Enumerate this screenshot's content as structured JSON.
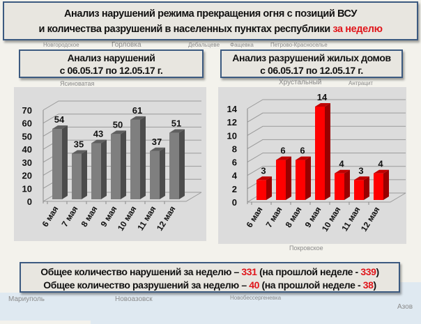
{
  "title": {
    "line1": "Анализ нарушений режима прекращения огня с позиций ВСУ",
    "line2": "и количества разрушений в населенных пунктах республики",
    "line2_highlight": "за неделю"
  },
  "left_header": {
    "line1": "Анализ нарушений",
    "line2": "с 06.05.17 по 12.05.17 г."
  },
  "right_header": {
    "line1": "Анализ разрушений жилых домов",
    "line2": "с 06.05.17 по 12.05.17 г."
  },
  "summary": {
    "line1_prefix": "Общее количество нарушений за неделю – ",
    "line1_value": "331",
    "line1_mid": " (на прошлой неделе - ",
    "line1_prev": "339",
    "line1_suffix": ")",
    "line2_prefix": "Общее количество разрушений за неделю – ",
    "line2_value": "40",
    "line2_mid": " (на прошлой неделе - ",
    "line2_prev": "38",
    "line2_suffix": ")"
  },
  "map_labels": [
    "Горловка",
    "Новгородское",
    "Дебальцеве",
    "Фащевка",
    "Петрово-Красноселье",
    "Ясиноватая",
    "Хрустальный",
    "Антрацит",
    "Покровское",
    "Мариуполь",
    "Новоазовск",
    "Азов",
    "Новобессергеневка"
  ],
  "colors": {
    "accent_red": "#e0161b",
    "border": "#3c5a80",
    "gray_bar": "#7f7f7f",
    "red_bar": "#ff0000"
  },
  "chart_data": [
    {
      "type": "bar",
      "style": "3d-column",
      "categories": [
        "6 мая",
        "7 мая",
        "8 мая",
        "9 мая",
        "10 мая",
        "11 мая",
        "12 мая"
      ],
      "values": [
        54,
        35,
        43,
        50,
        61,
        37,
        51
      ],
      "ylim": [
        0,
        70
      ],
      "yticks": [
        0,
        10,
        20,
        30,
        40,
        50,
        60,
        70
      ],
      "grid": true,
      "color": "#7f7f7f"
    },
    {
      "type": "bar",
      "style": "3d-column",
      "categories": [
        "6 мая",
        "7 мая",
        "8 мая",
        "9 мая",
        "10 мая",
        "11 мая",
        "12 мая"
      ],
      "values": [
        3,
        6,
        6,
        14,
        4,
        3,
        4
      ],
      "ylim": [
        0,
        14
      ],
      "yticks": [
        0,
        2,
        4,
        6,
        8,
        10,
        12,
        14
      ],
      "grid": true,
      "color": "#ff0000"
    }
  ]
}
